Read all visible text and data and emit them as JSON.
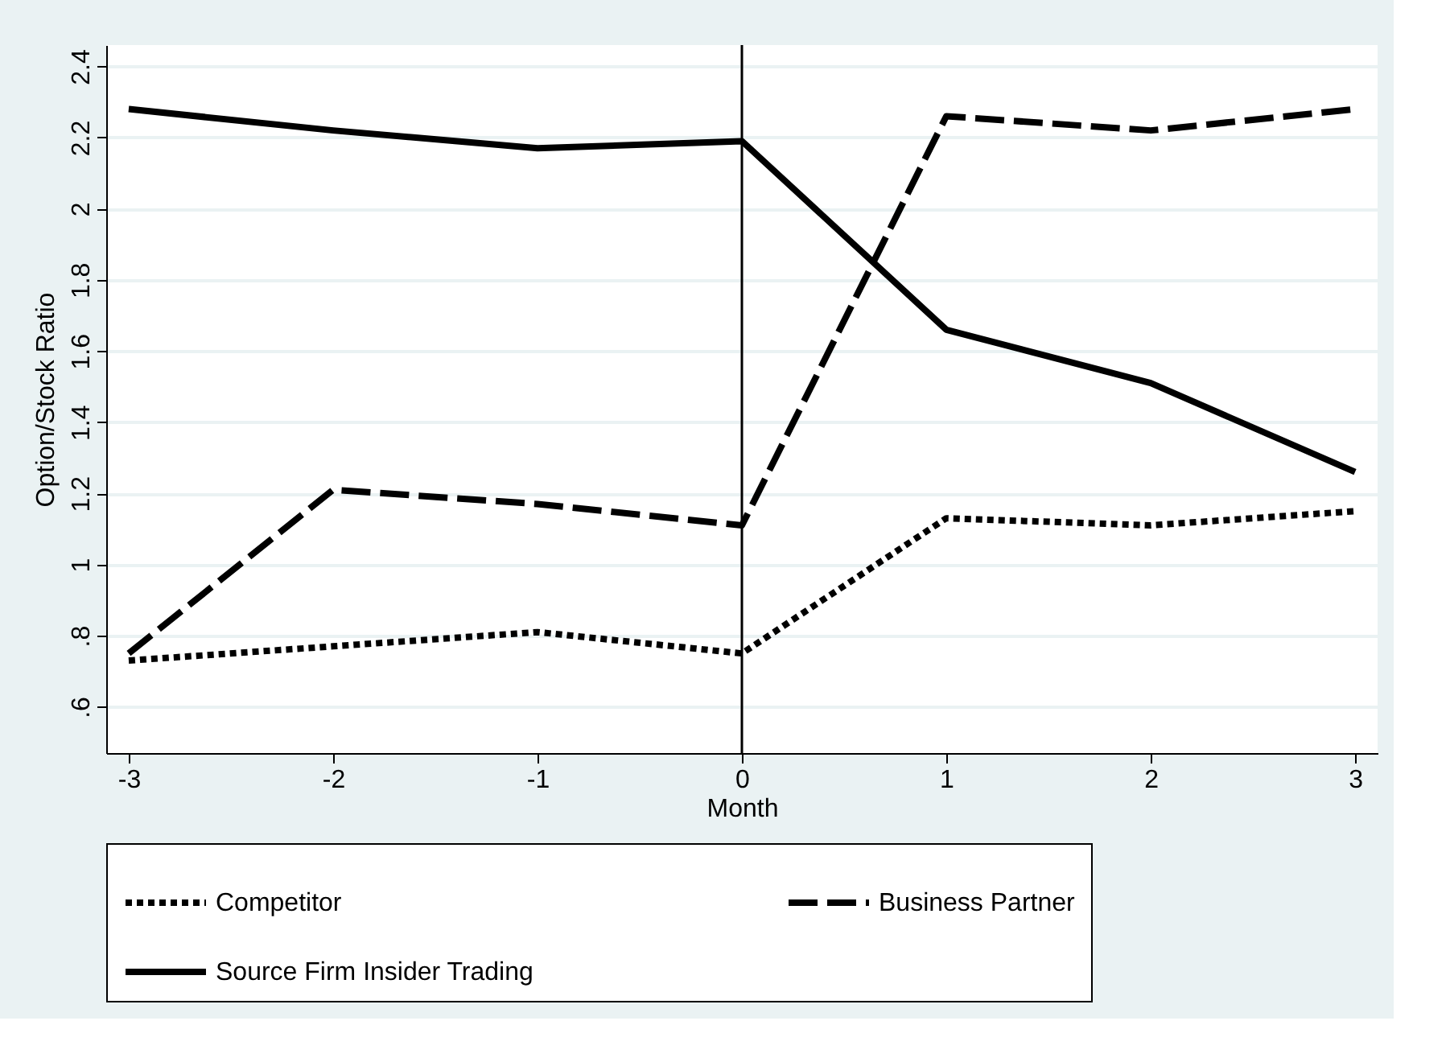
{
  "chart_data": {
    "type": "line",
    "xlabel": "Month",
    "ylabel": "Option/Stock Ratio",
    "x": [
      -3,
      -2,
      -1,
      0,
      1,
      2,
      3
    ],
    "series": [
      {
        "name": "Competitor",
        "color": "#000000",
        "line_style": "dotted",
        "values": [
          0.73,
          0.77,
          0.81,
          0.75,
          1.13,
          1.11,
          1.15
        ]
      },
      {
        "name": "Business Partner",
        "color": "#000000",
        "line_style": "dashed",
        "values": [
          0.75,
          1.21,
          1.17,
          1.11,
          2.26,
          2.22,
          2.28
        ]
      },
      {
        "name": "Source Firm Insider Trading",
        "color": "#000000",
        "line_style": "solid",
        "values": [
          2.28,
          2.22,
          2.17,
          2.19,
          1.66,
          1.51,
          1.26
        ]
      }
    ],
    "xlim": [
      -3.11,
      3.11
    ],
    "xticks": [
      -3,
      -2,
      -1,
      0,
      1,
      2,
      3
    ],
    "ylim": [
      0.47,
      2.46
    ],
    "yticks": [
      {
        "value": 0.6,
        "label": ".6"
      },
      {
        "value": 0.8,
        "label": ".8"
      },
      1,
      1.2,
      1.4,
      1.6,
      1.8,
      2,
      2.2,
      2.4
    ],
    "ref_lines": [
      {
        "axis": "x",
        "value": 0,
        "color": "#000000"
      }
    ],
    "grid": "y",
    "legend": "bottom",
    "marker": "none"
  }
}
